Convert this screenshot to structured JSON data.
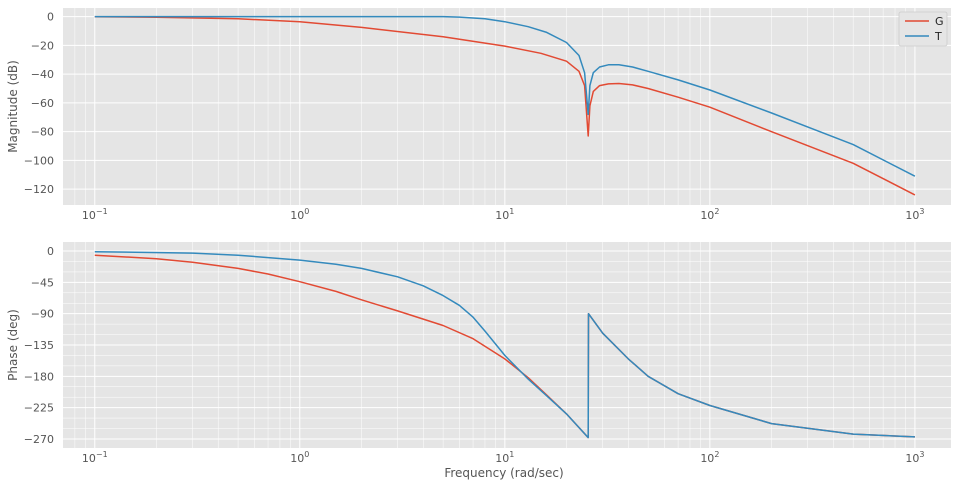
{
  "chart_data": [
    {
      "type": "line",
      "panel": "magnitude",
      "xscale": "log",
      "xlim": [
        0.07,
        1500
      ],
      "ylim": [
        -131,
        6
      ],
      "ylabel": "Magnitude (dB)",
      "xlabel": "",
      "xticks": [
        {
          "value": 0.1,
          "base": "10",
          "exp": "−1"
        },
        {
          "value": 1,
          "base": "10",
          "exp": "0"
        },
        {
          "value": 10,
          "base": "10",
          "exp": "1"
        },
        {
          "value": 100,
          "base": "10",
          "exp": "2"
        },
        {
          "value": 1000,
          "base": "10",
          "exp": "3"
        }
      ],
      "yticks": [
        {
          "value": 0,
          "label": "0"
        },
        {
          "value": -20,
          "label": "−20"
        },
        {
          "value": -40,
          "label": "−40"
        },
        {
          "value": -60,
          "label": "−60"
        },
        {
          "value": -80,
          "label": "−80"
        },
        {
          "value": -100,
          "label": "−100"
        },
        {
          "value": -120,
          "label": "−120"
        }
      ],
      "grid": true,
      "legend": {
        "position": "top-right",
        "entries": [
          "G",
          "T"
        ]
      },
      "series": [
        {
          "name": "G",
          "color": "#e24a33",
          "x": [
            0.1,
            0.2,
            0.5,
            1,
            2,
            5,
            10,
            15,
            20,
            23,
            24.5,
            25.5,
            26,
            27,
            29,
            32,
            36,
            42,
            50,
            70,
            100,
            200,
            500,
            1000
          ],
          "y": [
            -0.1,
            -0.4,
            -1.5,
            -3.5,
            -7.5,
            -14,
            -20.5,
            -25.5,
            -31,
            -38,
            -48,
            -83,
            -62,
            -52,
            -48,
            -46.8,
            -46.5,
            -47.5,
            -50,
            -56,
            -63,
            -80,
            -102,
            -124
          ]
        },
        {
          "name": "T",
          "color": "#348abd",
          "x": [
            0.1,
            0.5,
            1,
            2,
            3,
            4,
            5,
            6,
            8,
            10,
            13,
            16,
            20,
            23,
            24.5,
            25.5,
            26,
            27,
            29,
            32,
            36,
            42,
            50,
            70,
            100,
            200,
            500,
            1000
          ],
          "y": [
            0,
            0,
            0,
            0,
            0,
            0,
            0,
            -0.3,
            -1.5,
            -3.5,
            -7,
            -11,
            -18,
            -27,
            -39,
            -68,
            -48,
            -39,
            -35,
            -33.5,
            -33.5,
            -35,
            -38,
            -44,
            -51,
            -67,
            -89,
            -111
          ]
        }
      ]
    },
    {
      "type": "line",
      "panel": "phase",
      "xscale": "log",
      "xlim": [
        0.07,
        1500
      ],
      "ylim": [
        -283,
        13
      ],
      "ylabel": "Phase (deg)",
      "xlabel": "Frequency (rad/sec)",
      "xticks": [
        {
          "value": 0.1,
          "base": "10",
          "exp": "−1"
        },
        {
          "value": 1,
          "base": "10",
          "exp": "0"
        },
        {
          "value": 10,
          "base": "10",
          "exp": "1"
        },
        {
          "value": 100,
          "base": "10",
          "exp": "2"
        },
        {
          "value": 1000,
          "base": "10",
          "exp": "3"
        }
      ],
      "yticks": [
        {
          "value": 0,
          "label": "0"
        },
        {
          "value": -45,
          "label": "−45"
        },
        {
          "value": -90,
          "label": "−90"
        },
        {
          "value": -135,
          "label": "−135"
        },
        {
          "value": -180,
          "label": "−180"
        },
        {
          "value": -225,
          "label": "−225"
        },
        {
          "value": -270,
          "label": "−270"
        }
      ],
      "grid": true,
      "series": [
        {
          "name": "G",
          "color": "#e24a33",
          "x": [
            0.1,
            0.2,
            0.3,
            0.5,
            0.7,
            1,
            1.5,
            2,
            3,
            5,
            7,
            10,
            13,
            16,
            20,
            25.5,
            25.6,
            30,
            40,
            50,
            70,
            100,
            200,
            500,
            1000
          ],
          "y": [
            -6,
            -11,
            -16,
            -25,
            -33,
            -44,
            -58,
            -70,
            -86,
            -107,
            -126,
            -155,
            -182,
            -207,
            -234,
            -268,
            -90,
            -118,
            -155,
            -180,
            -205,
            -222,
            -248,
            -263,
            -267
          ]
        },
        {
          "name": "T",
          "color": "#348abd",
          "x": [
            0.1,
            0.3,
            0.5,
            1,
            1.5,
            2,
            3,
            4,
            5,
            6,
            7,
            8,
            10,
            13,
            16,
            20,
            25.5,
            25.6,
            30,
            40,
            50,
            70,
            100,
            200,
            500,
            1000
          ],
          "y": [
            -1,
            -3,
            -6,
            -13,
            -19,
            -25,
            -37,
            -50,
            -64,
            -78,
            -95,
            -115,
            -150,
            -184,
            -208,
            -234,
            -268,
            -90,
            -118,
            -155,
            -180,
            -205,
            -222,
            -248,
            -263,
            -267
          ]
        }
      ]
    }
  ]
}
